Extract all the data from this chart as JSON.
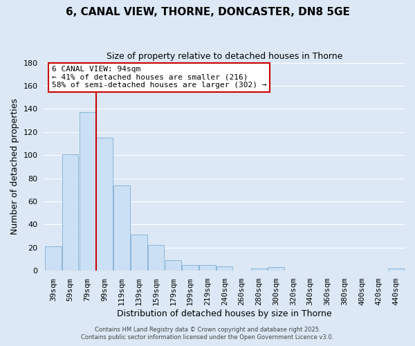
{
  "title": "6, CANAL VIEW, THORNE, DONCASTER, DN8 5GE",
  "subtitle": "Size of property relative to detached houses in Thorne",
  "xlabel": "Distribution of detached houses by size in Thorne",
  "ylabel": "Number of detached properties",
  "bar_labels": [
    "39sqm",
    "59sqm",
    "79sqm",
    "99sqm",
    "119sqm",
    "139sqm",
    "159sqm",
    "179sqm",
    "199sqm",
    "219sqm",
    "240sqm",
    "260sqm",
    "280sqm",
    "300sqm",
    "320sqm",
    "340sqm",
    "360sqm",
    "380sqm",
    "400sqm",
    "420sqm",
    "440sqm"
  ],
  "bar_values": [
    21,
    101,
    137,
    115,
    74,
    31,
    22,
    9,
    5,
    5,
    4,
    0,
    2,
    3,
    0,
    0,
    0,
    0,
    0,
    0,
    2
  ],
  "bar_color": "#cce0f5",
  "bar_edge_color": "#8ab4d8",
  "vline_color": "#cc0000",
  "vline_pos": 2.5,
  "ylim": [
    0,
    180
  ],
  "yticks": [
    0,
    20,
    40,
    60,
    80,
    100,
    120,
    140,
    160,
    180
  ],
  "annotation_title": "6 CANAL VIEW: 94sqm",
  "annotation_line1": "← 41% of detached houses are smaller (216)",
  "annotation_line2": "58% of semi-detached houses are larger (302) →",
  "annotation_box_color": "#ffffff",
  "annotation_box_edge": "#cc0000",
  "footer1": "Contains HM Land Registry data © Crown copyright and database right 2025.",
  "footer2": "Contains public sector information licensed under the Open Government Licence v3.0.",
  "background_color": "#dce8f5",
  "plot_background": "#dce8f5",
  "grid_color": "#ffffff",
  "title_fontsize": 11,
  "subtitle_fontsize": 9,
  "axis_label_fontsize": 9,
  "tick_fontsize": 8,
  "annotation_fontsize": 8,
  "footer_fontsize": 6
}
